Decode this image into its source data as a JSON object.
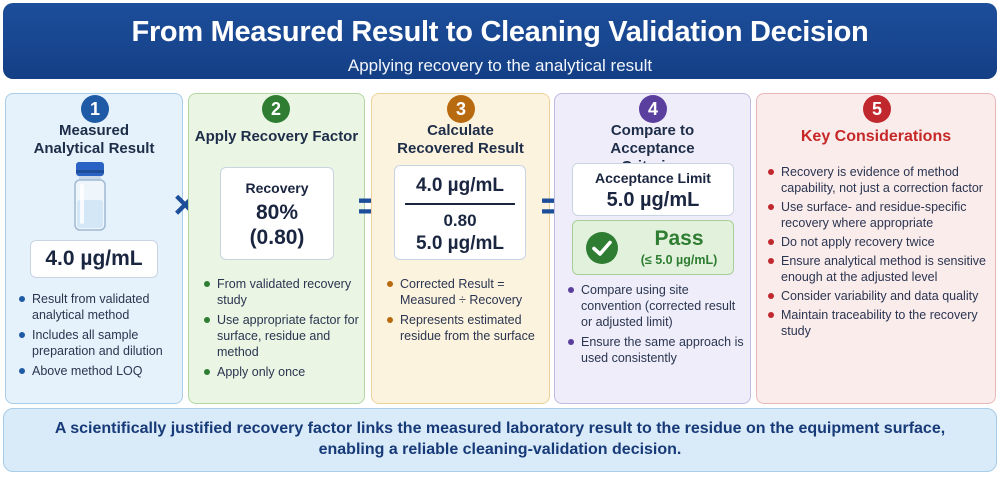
{
  "header": {
    "title": "From Measured Result to Cleaning Validation Decision",
    "subtitle": "Applying recovery to the analytical result"
  },
  "steps": [
    {
      "number": "1",
      "title": "Measured Analytical Result",
      "value": "4.0 µg/mL",
      "icon": "sample-vial-icon",
      "bullets": [
        "Result from validated analytical method",
        "Includes all sample preparation and dilution",
        "Above method LOQ"
      ]
    },
    {
      "number": "2",
      "title": "Apply Recovery Factor",
      "box_label": "Recovery",
      "box_percent": "80%",
      "box_decimal": "(0.80)",
      "bullets": [
        "From validated recovery study",
        "Use appropriate factor for surface, residue and method",
        "Apply only once"
      ]
    },
    {
      "number": "3",
      "title": "Calculate Recovered Result",
      "numerator": "4.0 µg/mL",
      "denominator": "0.80",
      "result": "5.0 µg/mL",
      "bullets": [
        "Corrected Result = Measured ÷ Recovery",
        "Represents estimated residue from the surface"
      ]
    },
    {
      "number": "4",
      "title": "Compare to Acceptance Criterion",
      "limit_label": "Acceptance Limit",
      "limit_value": "5.0 µg/mL",
      "pass_label": "Pass",
      "pass_detail": "(≤ 5.0 µg/mL)",
      "bullets": [
        "Compare using site convention (corrected result or adjusted limit)",
        "Ensure the same approach is used consistently"
      ]
    },
    {
      "number": "5",
      "title": "Key Considerations",
      "bullets": [
        "Recovery is evidence of method capability, not just a correction factor",
        "Use surface- and residue-specific recovery where appropriate",
        "Do not apply recovery twice",
        "Ensure analytical method is sensitive enough at the adjusted level",
        "Consider variability and data quality",
        "Maintain traceability to the recovery study"
      ]
    }
  ],
  "operators": {
    "multiply": "×",
    "equals_1": "=",
    "equals_2": "="
  },
  "footer": {
    "line1": "A scientifically justified recovery factor links the measured laboratory result to the residue on the equipment surface,",
    "line2": "enabling a reliable cleaning-validation decision."
  },
  "colors": {
    "header": "#1d4e9a",
    "step1": "#1f5aa6",
    "step2": "#2e7d32",
    "step3": "#b86a10",
    "step4": "#5b3f9e",
    "step5": "#c0282e",
    "pass": "#2e7d32"
  }
}
